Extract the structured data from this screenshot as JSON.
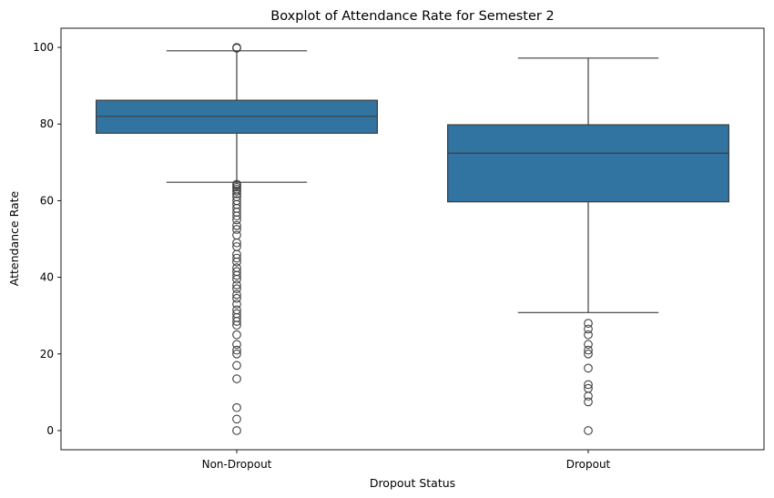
{
  "chart_data": {
    "type": "boxplot",
    "title": "Boxplot of Attendance Rate for Semester 2",
    "xlabel": "Dropout Status",
    "ylabel": "Attendance Rate",
    "categories": [
      "Non-Dropout",
      "Dropout"
    ],
    "ylim": [
      -5,
      105
    ],
    "yticks": [
      0,
      20,
      40,
      60,
      80,
      100
    ],
    "grid": false,
    "box_color": "#3274a1",
    "line_color": "#3d3d3d",
    "boxes": [
      {
        "category": "Non-Dropout",
        "whisker_low": 64.8,
        "q1": 77.6,
        "median": 82.0,
        "q3": 86.2,
        "whisker_high": 99.1,
        "outliers": [
          100,
          99.8,
          0,
          3,
          6,
          13.5,
          17,
          20,
          21,
          22.5,
          25,
          27.5,
          28.5,
          29.5,
          30.5,
          31.5,
          33,
          34.5,
          35.5,
          37,
          38,
          39.5,
          40.5,
          41.5,
          42.5,
          44,
          45,
          46,
          48,
          49,
          51,
          52.5,
          53.5,
          55,
          56,
          57,
          58,
          59,
          60,
          61,
          61.8,
          62.5,
          63,
          63.5,
          64,
          64.3
        ]
      },
      {
        "category": "Dropout",
        "whisker_low": 30.8,
        "q1": 59.7,
        "median": 72.4,
        "q3": 79.8,
        "whisker_high": 97.2,
        "outliers": [
          0,
          7.5,
          9,
          11,
          12,
          16.3,
          20,
          21,
          22.5,
          25,
          26.5,
          28
        ]
      }
    ]
  }
}
